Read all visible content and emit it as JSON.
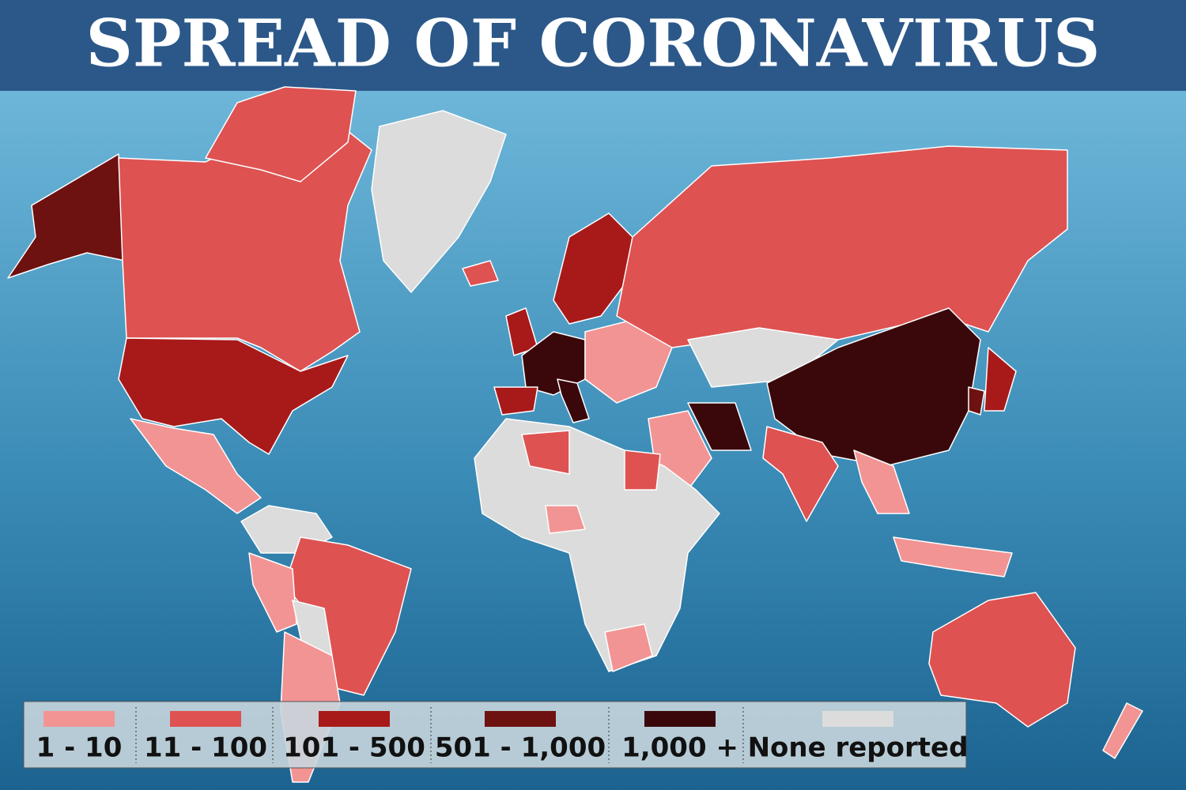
{
  "header": {
    "title": "SPREAD OF CORONAVIRUS"
  },
  "legend": {
    "items": [
      {
        "label": "1 - 10",
        "color": "#f29494"
      },
      {
        "label": "11 - 100",
        "color": "#de5252"
      },
      {
        "label": "101 - 500",
        "color": "#a81a1a"
      },
      {
        "label": "501 - 1,000",
        "color": "#6e1111"
      },
      {
        "label": "1,000 +",
        "color": "#3a080b"
      },
      {
        "label": "None reported",
        "color": "#dcdcdc"
      }
    ]
  }
}
